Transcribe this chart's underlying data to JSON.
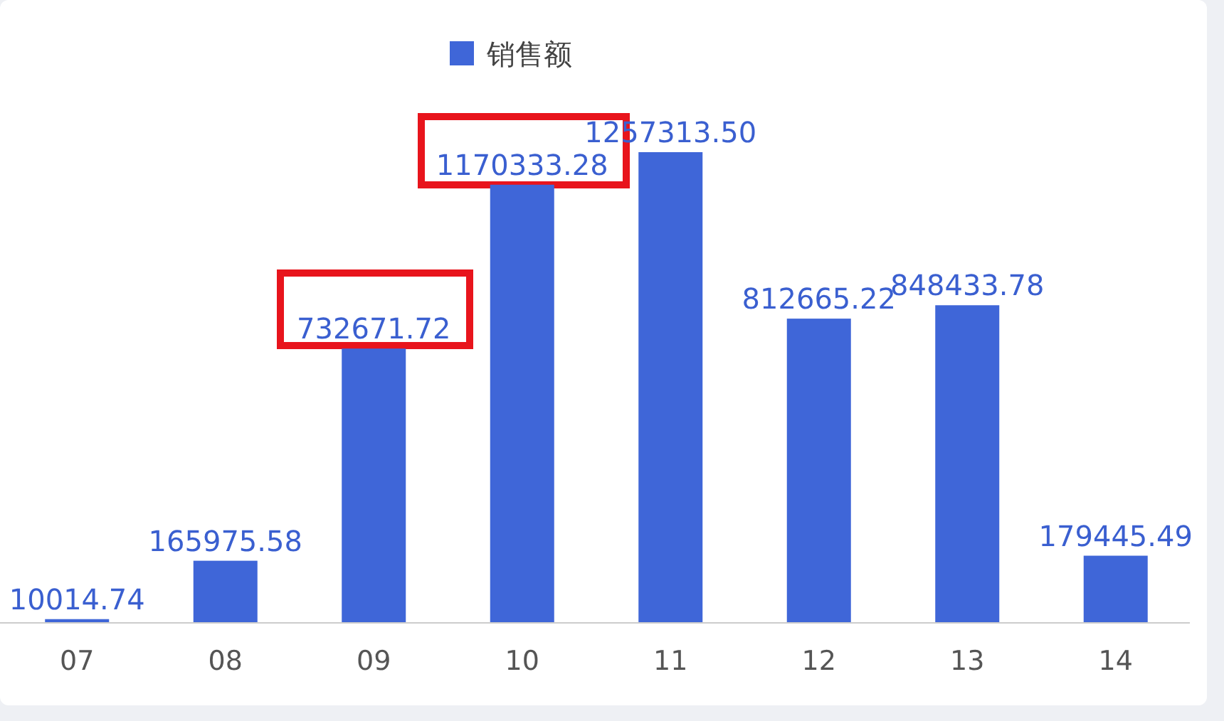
{
  "chart_data": {
    "type": "bar",
    "categories": [
      "07",
      "08",
      "09",
      "10",
      "11",
      "12",
      "13",
      "14"
    ],
    "series": [
      {
        "name": "销售额",
        "color": "#3f66d8",
        "values": [
          10014.74,
          165975.58,
          732671.72,
          1170333.28,
          1257313.5,
          812665.22,
          848433.78,
          179445.49
        ],
        "value_labels": [
          "10014.74",
          "165975.58",
          "732671.72",
          "1170333.28",
          "1257313.50",
          "812665.22",
          "848433.78",
          "179445.49"
        ]
      }
    ],
    "legend": "top"
  }
}
